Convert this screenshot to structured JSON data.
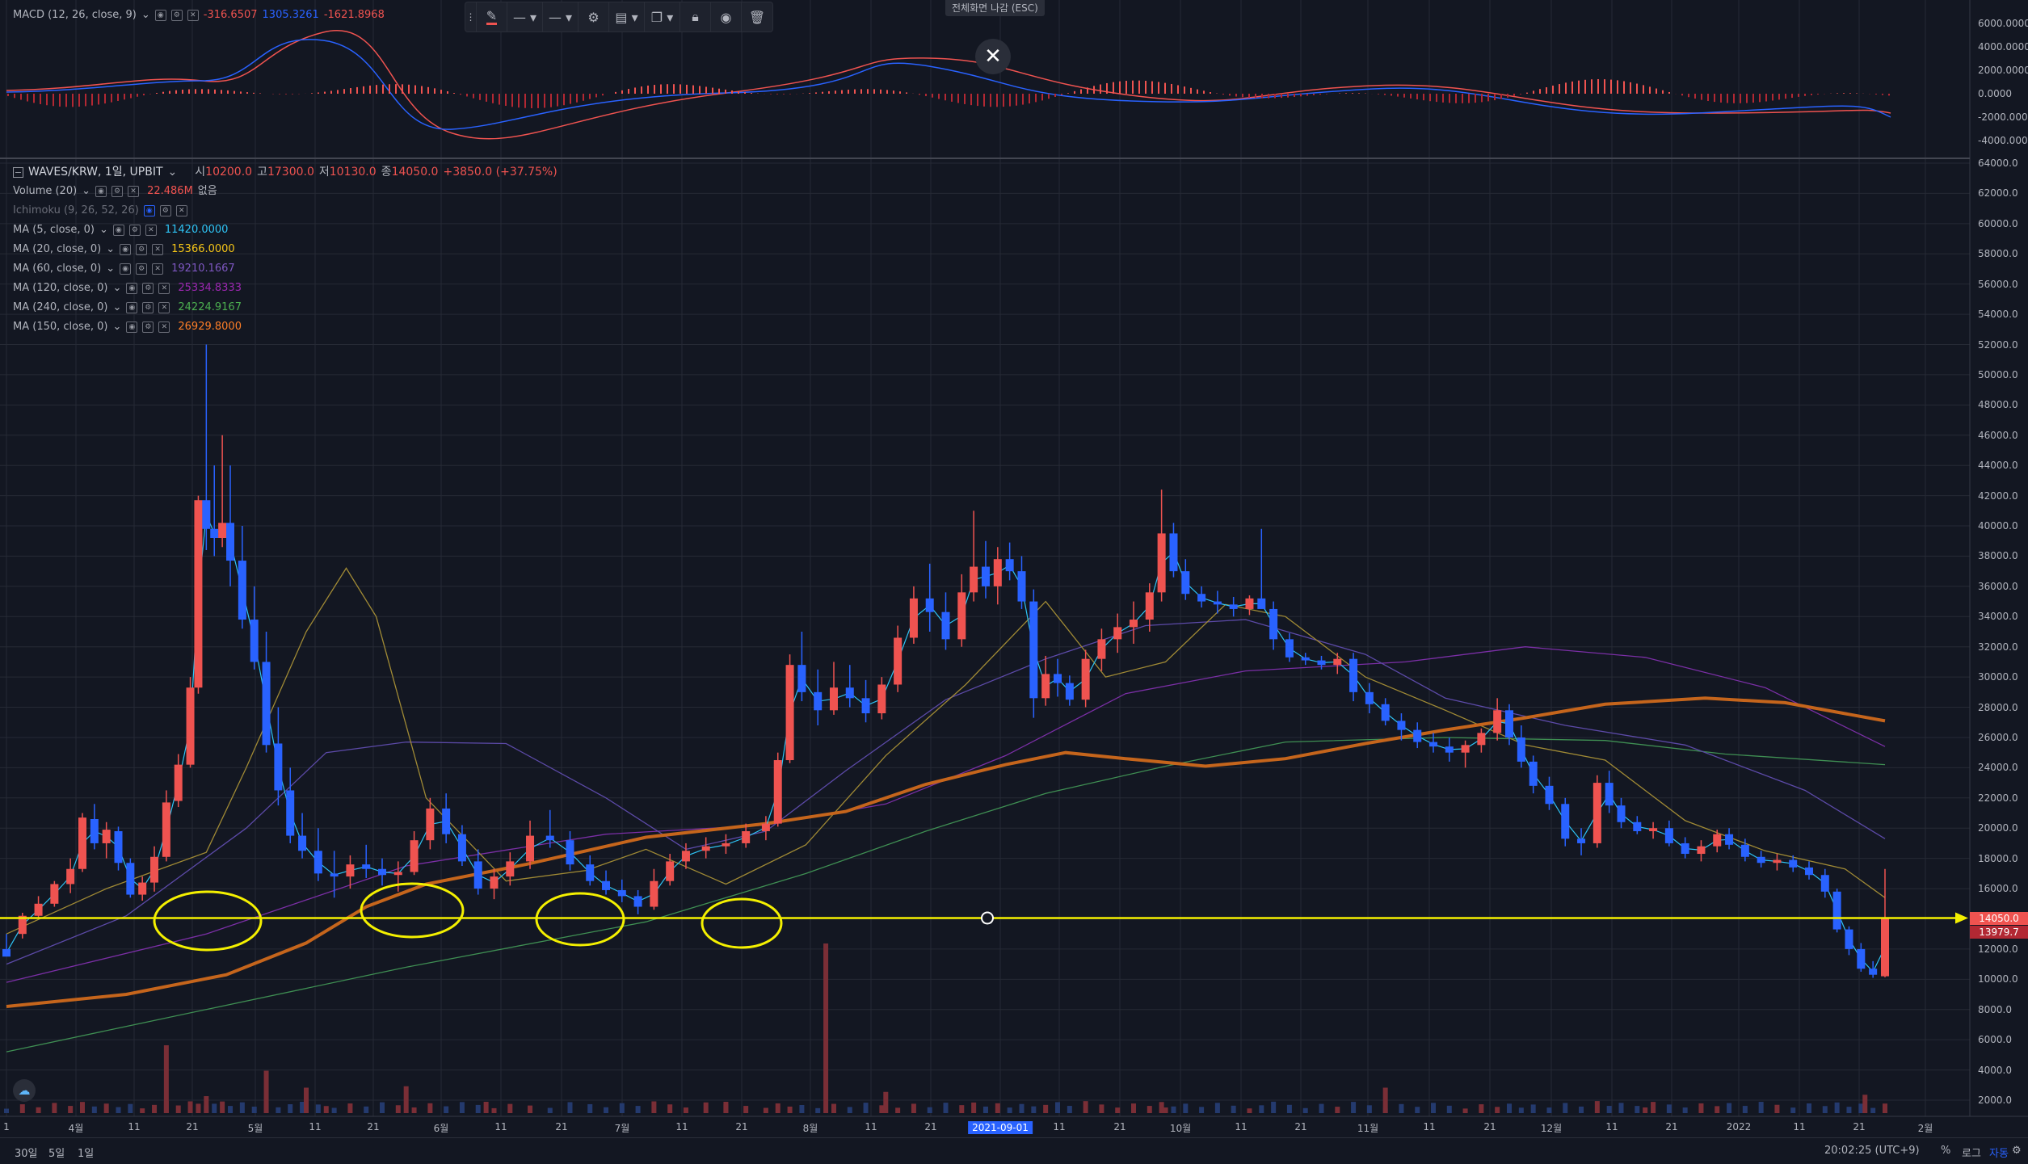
{
  "macd": {
    "title": "MACD (12, 26, close, 9)",
    "v1": "-316.6507",
    "v2": "1305.3261",
    "v3": "-1621.8968",
    "yaxis": [
      "6000.0000",
      "4000.0000",
      "2000.0000",
      "0.0000",
      "-2000.0000",
      "-4000.0000"
    ]
  },
  "toolbar": {
    "items": [
      "pencil-icon",
      "line-style-icon",
      "line-width-icon",
      "settings-icon",
      "templates-icon",
      "clone-icon",
      "lock-icon",
      "eye-icon",
      "trash-icon"
    ]
  },
  "fullscreen": {
    "esc_label": "전체화면 나감 (ESC)",
    "close_glyph": "✕"
  },
  "symbol": {
    "title": "WAVES/KRW, 1일, UPBIT",
    "open_label": "시",
    "open": "10200.0",
    "high_label": "고",
    "high": "17300.0",
    "low_label": "저",
    "low": "10130.0",
    "close_label": "종",
    "close": "14050.0",
    "change": "+3850.0 (+37.75%)"
  },
  "indicators": [
    {
      "name": "Volume (20)",
      "value": "22.486M",
      "extra": "없음",
      "color": "#ef5350"
    },
    {
      "name": "Ichimoku (9, 26, 52, 26)",
      "value": "",
      "extra": "",
      "color": "#6a6d78"
    },
    {
      "name": "MA (5, close, 0)",
      "value": "11420.0000",
      "extra": "",
      "color": "#2ec4f5"
    },
    {
      "name": "MA (20, close, 0)",
      "value": "15366.0000",
      "extra": "",
      "color": "#f5c518"
    },
    {
      "name": "MA (60, close, 0)",
      "value": "19210.1667",
      "extra": "",
      "color": "#7e57c2"
    },
    {
      "name": "MA (120, close, 0)",
      "value": "25334.8333",
      "extra": "",
      "color": "#9c27b0"
    },
    {
      "name": "MA (240, close, 0)",
      "value": "24224.9167",
      "extra": "",
      "color": "#4caf50"
    },
    {
      "name": "MA (150, close, 0)",
      "value": "26929.8000",
      "extra": "",
      "color": "#ff7f27"
    }
  ],
  "price_axis": [
    "64000.0",
    "62000.0",
    "60000.0",
    "58000.0",
    "56000.0",
    "54000.0",
    "52000.0",
    "50000.0",
    "48000.0",
    "46000.0",
    "44000.0",
    "42000.0",
    "40000.0",
    "38000.0",
    "36000.0",
    "34000.0",
    "32000.0",
    "30000.0",
    "28000.0",
    "26000.0",
    "24000.0",
    "22000.0",
    "20000.0",
    "18000.0",
    "16000.0",
    "12000.0",
    "10000.0",
    "8000.0",
    "6000.0",
    "4000.0",
    "2000.0"
  ],
  "price_tags": {
    "last": "14050.0",
    "second": "13979.7"
  },
  "time_axis": [
    "1",
    "4월",
    "11",
    "21",
    "5월",
    "11",
    "21",
    "6월",
    "11",
    "21",
    "7월",
    "11",
    "21",
    "8월",
    "11",
    "21",
    "2021-09-01",
    "11",
    "21",
    "10월",
    "11",
    "21",
    "11월",
    "11",
    "21",
    "12월",
    "11",
    "21",
    "2022",
    "11",
    "21",
    "2월"
  ],
  "footer": {
    "tf1": "30일",
    "tf2": "5일",
    "tf3": "1일",
    "time": "20:02:25 (UTC+9)",
    "pct": "%",
    "log": "로그",
    "auto": "자동"
  },
  "colors": {
    "background": "#131722",
    "up": "#ef5350",
    "down": "#2962ff",
    "horizontal_line": "#f4f000",
    "ma150": "#c5651c"
  },
  "chart_data": {
    "type": "candlestick",
    "title": "WAVES/KRW, 1일, UPBIT",
    "horizontal_level": 14050,
    "ylim": [
      0,
      64000
    ],
    "annotations": [
      "4 yellow ellipses marking support touches near 14050"
    ],
    "ma150_path": [
      [
        0,
        8200
      ],
      [
        60,
        9000
      ],
      [
        110,
        10300
      ],
      [
        150,
        12400
      ],
      [
        180,
        14800
      ],
      [
        210,
        16300
      ],
      [
        260,
        17600
      ],
      [
        320,
        19400
      ],
      [
        380,
        20300
      ],
      [
        420,
        21100
      ],
      [
        460,
        22900
      ],
      [
        500,
        24200
      ],
      [
        530,
        25000
      ],
      [
        560,
        24600
      ],
      [
        600,
        24100
      ],
      [
        640,
        24600
      ],
      [
        680,
        25600
      ],
      [
        720,
        26500
      ],
      [
        760,
        27300
      ],
      [
        800,
        28200
      ],
      [
        850,
        28600
      ],
      [
        890,
        28300
      ],
      [
        940,
        27100
      ]
    ],
    "ma240_path": [
      [
        0,
        5200
      ],
      [
        100,
        8000
      ],
      [
        200,
        10800
      ],
      [
        320,
        13800
      ],
      [
        400,
        17000
      ],
      [
        460,
        19800
      ],
      [
        520,
        22300
      ],
      [
        580,
        24100
      ],
      [
        640,
        25700
      ],
      [
        720,
        26000
      ],
      [
        800,
        25800
      ],
      [
        860,
        24900
      ],
      [
        940,
        24200
      ]
    ],
    "ma120_path": [
      [
        0,
        9800
      ],
      [
        100,
        13000
      ],
      [
        200,
        17500
      ],
      [
        300,
        19600
      ],
      [
        380,
        20200
      ],
      [
        440,
        21600
      ],
      [
        500,
        24800
      ],
      [
        560,
        28900
      ],
      [
        620,
        30400
      ],
      [
        700,
        31000
      ],
      [
        760,
        32000
      ],
      [
        820,
        31300
      ],
      [
        880,
        29300
      ],
      [
        940,
        25400
      ]
    ],
    "ma60_path": [
      [
        0,
        11000
      ],
      [
        60,
        14200
      ],
      [
        120,
        20000
      ],
      [
        160,
        25000
      ],
      [
        200,
        25700
      ],
      [
        250,
        25600
      ],
      [
        300,
        22000
      ],
      [
        340,
        18600
      ],
      [
        380,
        19800
      ],
      [
        420,
        23800
      ],
      [
        470,
        28500
      ],
      [
        520,
        31200
      ],
      [
        570,
        33400
      ],
      [
        620,
        33800
      ],
      [
        680,
        31500
      ],
      [
        720,
        28600
      ],
      [
        780,
        26800
      ],
      [
        840,
        25500
      ],
      [
        900,
        22500
      ],
      [
        940,
        19300
      ]
    ],
    "ma20_path": [
      [
        0,
        13000
      ],
      [
        50,
        16000
      ],
      [
        100,
        18400
      ],
      [
        120,
        24000
      ],
      [
        150,
        33000
      ],
      [
        170,
        37200
      ],
      [
        185,
        34000
      ],
      [
        210,
        22000
      ],
      [
        250,
        16500
      ],
      [
        290,
        17200
      ],
      [
        320,
        18600
      ],
      [
        360,
        16300
      ],
      [
        400,
        18900
      ],
      [
        440,
        24800
      ],
      [
        480,
        29500
      ],
      [
        520,
        35000
      ],
      [
        550,
        30000
      ],
      [
        580,
        31000
      ],
      [
        610,
        34800
      ],
      [
        640,
        34000
      ],
      [
        680,
        30000
      ],
      [
        720,
        27800
      ],
      [
        760,
        25500
      ],
      [
        800,
        24500
      ],
      [
        840,
        20500
      ],
      [
        880,
        18500
      ],
      [
        920,
        17300
      ],
      [
        940,
        15400
      ]
    ],
    "volume_bars": [
      [
        80,
        4800
      ],
      [
        100,
        1200
      ],
      [
        130,
        3000
      ],
      [
        150,
        1800
      ],
      [
        160,
        500
      ],
      [
        200,
        1900
      ],
      [
        240,
        800
      ],
      [
        360,
        800
      ],
      [
        410,
        12000
      ],
      [
        440,
        1500
      ],
      [
        580,
        400
      ],
      [
        690,
        1800
      ],
      [
        820,
        400
      ],
      [
        930,
        1300
      ]
    ],
    "candles": [
      [
        0,
        12000,
        13000,
        12000,
        11500
      ],
      [
        8,
        13000,
        14400,
        12700,
        14200
      ],
      [
        16,
        14200,
        15500,
        14000,
        15000
      ],
      [
        24,
        15000,
        16500,
        14800,
        16300
      ],
      [
        32,
        16300,
        18000,
        15700,
        17300
      ],
      [
        38,
        17300,
        21000,
        17100,
        20700
      ],
      [
        44,
        20600,
        21600,
        18600,
        19000
      ],
      [
        50,
        19000,
        20400,
        18000,
        19900
      ],
      [
        56,
        19800,
        20100,
        17200,
        17700
      ],
      [
        62,
        17700,
        18000,
        15400,
        15600
      ],
      [
        68,
        15600,
        16800,
        15200,
        16400
      ],
      [
        74,
        16400,
        18800,
        15800,
        18100
      ],
      [
        80,
        18100,
        22500,
        17800,
        21700
      ],
      [
        86,
        21800,
        24900,
        21400,
        24200
      ],
      [
        92,
        24200,
        30000,
        24000,
        29300
      ],
      [
        96,
        29300,
        42000,
        28900,
        41700
      ],
      [
        100,
        41700,
        52000,
        38400,
        39800
      ],
      [
        104,
        39800,
        44000,
        38000,
        39200
      ],
      [
        108,
        39200,
        46000,
        38600,
        40200
      ],
      [
        112,
        40200,
        44000,
        36000,
        37700
      ],
      [
        118,
        37700,
        40000,
        33200,
        33800
      ],
      [
        124,
        33800,
        36000,
        30500,
        31000
      ],
      [
        130,
        31000,
        33000,
        25000,
        25500
      ],
      [
        136,
        25600,
        28000,
        21500,
        22500
      ],
      [
        142,
        22500,
        24000,
        19000,
        19500
      ],
      [
        148,
        19500,
        21000,
        18000,
        18500
      ],
      [
        156,
        18500,
        20000,
        16500,
        17000
      ],
      [
        164,
        17000,
        18500,
        15400,
        16800
      ],
      [
        172,
        16800,
        18200,
        16000,
        17600
      ],
      [
        180,
        17600,
        18900,
        16700,
        17300
      ],
      [
        188,
        17300,
        18000,
        16200,
        16900
      ],
      [
        196,
        16900,
        17800,
        15800,
        17100
      ],
      [
        204,
        17100,
        19800,
        16900,
        19200
      ],
      [
        212,
        19200,
        22000,
        18600,
        21300
      ],
      [
        220,
        21300,
        22300,
        19000,
        19600
      ],
      [
        228,
        19600,
        20200,
        17500,
        17800
      ],
      [
        236,
        17800,
        18600,
        15600,
        16000
      ],
      [
        244,
        16000,
        17300,
        15300,
        16800
      ],
      [
        252,
        16800,
        18400,
        16200,
        17800
      ],
      [
        262,
        17800,
        20500,
        17300,
        19500
      ],
      [
        272,
        19500,
        21200,
        18700,
        19200
      ],
      [
        282,
        19200,
        19800,
        17200,
        17600
      ],
      [
        292,
        17600,
        18200,
        16200,
        16500
      ],
      [
        300,
        16500,
        17200,
        15600,
        15900
      ],
      [
        308,
        15900,
        16600,
        15100,
        15500
      ],
      [
        316,
        15500,
        15900,
        14300,
        14800
      ],
      [
        324,
        14800,
        17300,
        14600,
        16500
      ],
      [
        332,
        16500,
        18300,
        16200,
        17800
      ],
      [
        340,
        17800,
        19000,
        17300,
        18500
      ],
      [
        350,
        18500,
        19400,
        18000,
        18800
      ],
      [
        360,
        18800,
        19600,
        18300,
        19000
      ],
      [
        370,
        19000,
        20300,
        18700,
        19800
      ],
      [
        380,
        19800,
        20800,
        19200,
        20300
      ],
      [
        386,
        20300,
        25000,
        20100,
        24500
      ],
      [
        392,
        24500,
        31500,
        24300,
        30800
      ],
      [
        398,
        30800,
        33000,
        28400,
        29000
      ],
      [
        406,
        29000,
        30500,
        26800,
        27800
      ],
      [
        414,
        27800,
        31000,
        27500,
        29300
      ],
      [
        422,
        29300,
        30800,
        28000,
        28600
      ],
      [
        430,
        28600,
        29800,
        27000,
        27600
      ],
      [
        438,
        27600,
        30000,
        27200,
        29500
      ],
      [
        446,
        29500,
        33400,
        29000,
        32600
      ],
      [
        454,
        32600,
        36000,
        32200,
        35200
      ],
      [
        462,
        35200,
        37500,
        33000,
        34300
      ],
      [
        470,
        34300,
        35600,
        31800,
        32500
      ],
      [
        478,
        32500,
        36800,
        32000,
        35600
      ],
      [
        484,
        35600,
        41000,
        35000,
        37300
      ],
      [
        490,
        37300,
        39000,
        35200,
        36000
      ],
      [
        496,
        36000,
        38600,
        34800,
        37800
      ],
      [
        502,
        37800,
        38900,
        36400,
        37000
      ],
      [
        508,
        37000,
        38000,
        34500,
        35000
      ],
      [
        514,
        35000,
        35800,
        27300,
        28600
      ],
      [
        520,
        28600,
        31400,
        28100,
        30200
      ],
      [
        526,
        30200,
        31200,
        28700,
        29600
      ],
      [
        532,
        29600,
        30100,
        28100,
        28500
      ],
      [
        540,
        28500,
        31800,
        28000,
        31200
      ],
      [
        548,
        31200,
        33200,
        30400,
        32500
      ],
      [
        556,
        32500,
        34200,
        31600,
        33300
      ],
      [
        564,
        33300,
        35000,
        32200,
        33800
      ],
      [
        572,
        33800,
        36200,
        33000,
        35600
      ],
      [
        578,
        35600,
        42400,
        35000,
        39500
      ],
      [
        584,
        39500,
        40200,
        36600,
        37000
      ],
      [
        590,
        37000,
        37800,
        35100,
        35500
      ],
      [
        598,
        35500,
        36000,
        34600,
        35000
      ],
      [
        606,
        35000,
        35700,
        34200,
        34800
      ],
      [
        614,
        34800,
        35300,
        34000,
        34500
      ],
      [
        622,
        34500,
        35400,
        34100,
        35200
      ],
      [
        628,
        35200,
        39800,
        34800,
        34500
      ],
      [
        634,
        34500,
        35000,
        31800,
        32500
      ],
      [
        642,
        32500,
        32900,
        31000,
        31300
      ],
      [
        650,
        31300,
        31600,
        30800,
        31100
      ],
      [
        658,
        31100,
        31400,
        30500,
        30800
      ],
      [
        666,
        30800,
        31600,
        30200,
        31200
      ],
      [
        674,
        31200,
        31600,
        28400,
        29000
      ],
      [
        682,
        29000,
        29600,
        27600,
        28200
      ],
      [
        690,
        28200,
        28600,
        26800,
        27100
      ],
      [
        698,
        27100,
        27600,
        25800,
        26500
      ],
      [
        706,
        26500,
        27000,
        25300,
        25700
      ],
      [
        714,
        25700,
        26300,
        25000,
        25400
      ],
      [
        722,
        25400,
        26000,
        24400,
        25000
      ],
      [
        730,
        25000,
        25800,
        24000,
        25500
      ],
      [
        738,
        25500,
        26600,
        25000,
        26300
      ],
      [
        746,
        26300,
        28600,
        25800,
        27800
      ],
      [
        752,
        27800,
        28200,
        25500,
        26000
      ],
      [
        758,
        26000,
        26800,
        24000,
        24400
      ],
      [
        764,
        24400,
        24800,
        22300,
        22800
      ],
      [
        772,
        22800,
        23400,
        21200,
        21600
      ],
      [
        780,
        21600,
        22000,
        18800,
        19300
      ],
      [
        788,
        19300,
        20000,
        18200,
        19000
      ],
      [
        796,
        19000,
        23500,
        18700,
        23000
      ],
      [
        802,
        23000,
        23800,
        21000,
        21500
      ],
      [
        808,
        21500,
        22000,
        20000,
        20400
      ],
      [
        816,
        20400,
        20800,
        19600,
        19800
      ],
      [
        824,
        19800,
        20400,
        19300,
        20000
      ],
      [
        832,
        20000,
        20500,
        18800,
        19000
      ],
      [
        840,
        19000,
        19400,
        18000,
        18300
      ],
      [
        848,
        18300,
        19200,
        17800,
        18800
      ],
      [
        856,
        18800,
        19900,
        18400,
        19600
      ],
      [
        862,
        19600,
        20000,
        18600,
        18900
      ],
      [
        870,
        18900,
        19300,
        17800,
        18100
      ],
      [
        878,
        18100,
        18500,
        17400,
        17700
      ],
      [
        886,
        17700,
        18300,
        17200,
        17900
      ],
      [
        894,
        17900,
        18200,
        17100,
        17400
      ],
      [
        902,
        17400,
        17800,
        16600,
        16900
      ],
      [
        910,
        16900,
        17300,
        15400,
        15800
      ],
      [
        916,
        15800,
        16000,
        13100,
        13300
      ],
      [
        922,
        13300,
        13500,
        11600,
        12000
      ],
      [
        928,
        12000,
        12400,
        10500,
        10700
      ],
      [
        934,
        10700,
        11200,
        10100,
        10300
      ],
      [
        940,
        10200,
        17300,
        10130,
        14050
      ]
    ]
  }
}
